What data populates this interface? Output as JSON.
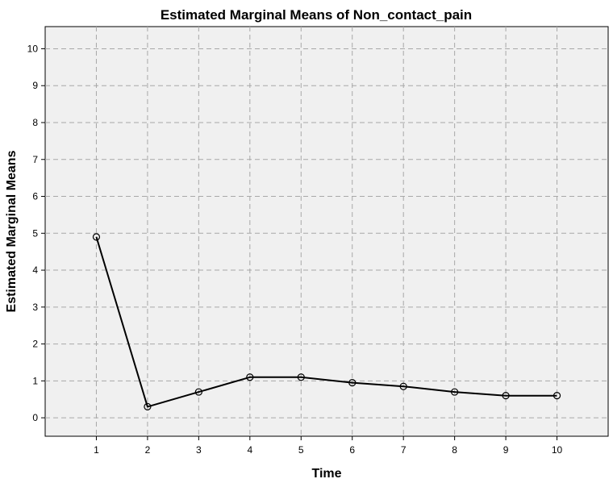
{
  "chart_data": {
    "type": "line",
    "title": "Estimated Marginal Means of Non_contact_pain",
    "xlabel": "Time",
    "ylabel": "Estimated Marginal Means",
    "categories": [
      "1",
      "2",
      "3",
      "4",
      "5",
      "6",
      "7",
      "8",
      "9",
      "10"
    ],
    "x": [
      1,
      2,
      3,
      4,
      5,
      6,
      7,
      8,
      9,
      10
    ],
    "values": [
      4.9,
      0.3,
      0.7,
      1.1,
      1.1,
      0.95,
      0.85,
      0.7,
      0.6,
      0.6
    ],
    "xlim": [
      0,
      11
    ],
    "ylim": [
      -0.5,
      10.6
    ],
    "yticks": [
      0,
      1,
      2,
      3,
      4,
      5,
      6,
      7,
      8,
      9,
      10
    ],
    "ytick_labels": [
      "0",
      "1",
      "2",
      "3",
      "4",
      "5",
      "6",
      "7",
      "8",
      "9",
      "10"
    ],
    "grid": true,
    "grid_style": "dashed",
    "marker": "open-circle",
    "colors": {
      "plot_background": "#f0f0f0",
      "line": "#000000",
      "grid": "#a8a8a8",
      "frame": "#000000"
    }
  }
}
